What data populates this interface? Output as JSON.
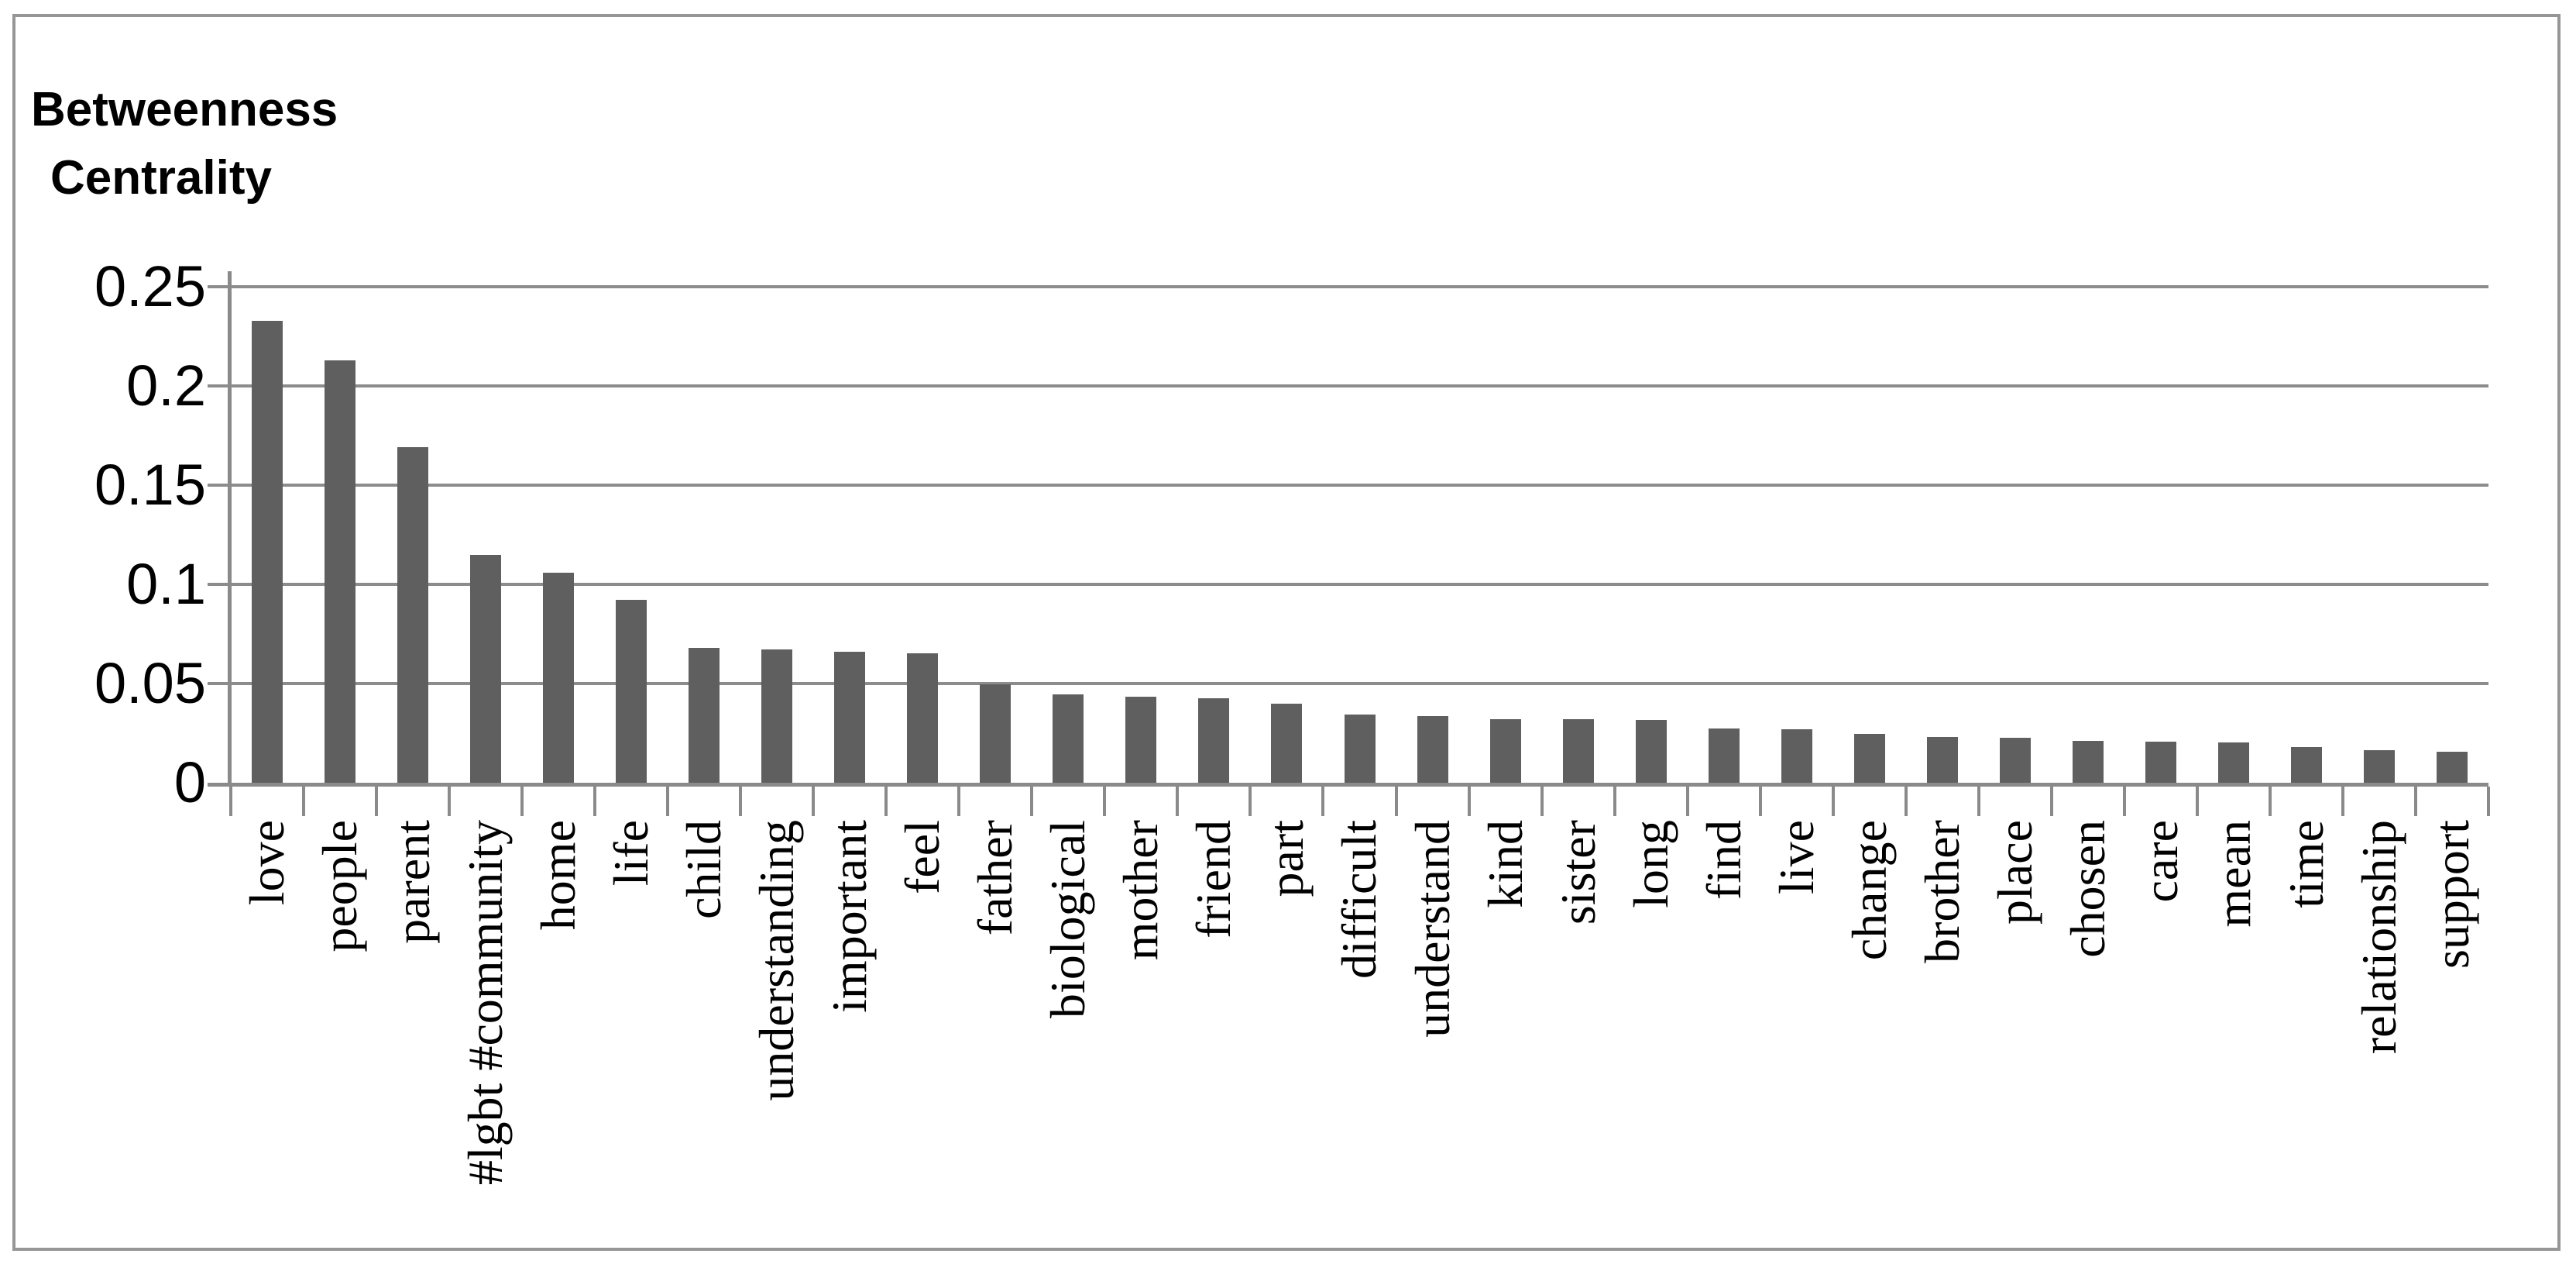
{
  "figure": {
    "background": "#ffffff",
    "border_color": "#969696"
  },
  "chart_data": {
    "type": "bar",
    "title": "Betweenness Centrality",
    "title_lines": [
      "Betweenness",
      "Centrality"
    ],
    "categories": [
      "love",
      "people",
      "parent",
      "#lgbt #community",
      "home",
      "life",
      "child",
      "understanding",
      "important",
      "feel",
      "father",
      "biological",
      "mother",
      "friend",
      "part",
      "difficult",
      "understand",
      "kind",
      "sister",
      "long",
      "find",
      "live",
      "change",
      "brother",
      "place",
      "chosen",
      "care",
      "mean",
      "time",
      "relationship",
      "support"
    ],
    "values": [
      0.233,
      0.213,
      0.169,
      0.115,
      0.106,
      0.092,
      0.068,
      0.0673,
      0.066,
      0.0652,
      0.0495,
      0.0445,
      0.0433,
      0.0425,
      0.04,
      0.0343,
      0.0334,
      0.0322,
      0.032,
      0.0318,
      0.0275,
      0.027,
      0.0247,
      0.023,
      0.0226,
      0.021,
      0.0206,
      0.0203,
      0.018,
      0.0166,
      0.0156
    ],
    "xlabel": "",
    "ylabel": "Betweenness Centrality",
    "ylim": [
      0,
      0.25
    ],
    "y_ticks": [
      0,
      0.05,
      0.1,
      0.15,
      0.2,
      0.25
    ],
    "y_tick_labels": [
      "0",
      "0.05",
      "0.1",
      "0.15",
      "0.2",
      "0.25"
    ],
    "grid": true,
    "legend": false,
    "bar_color": "#5f5f5f",
    "gridline_color": "#8c8c8c",
    "axis_color": "#8a8a8a",
    "text_color": "#000000"
  }
}
